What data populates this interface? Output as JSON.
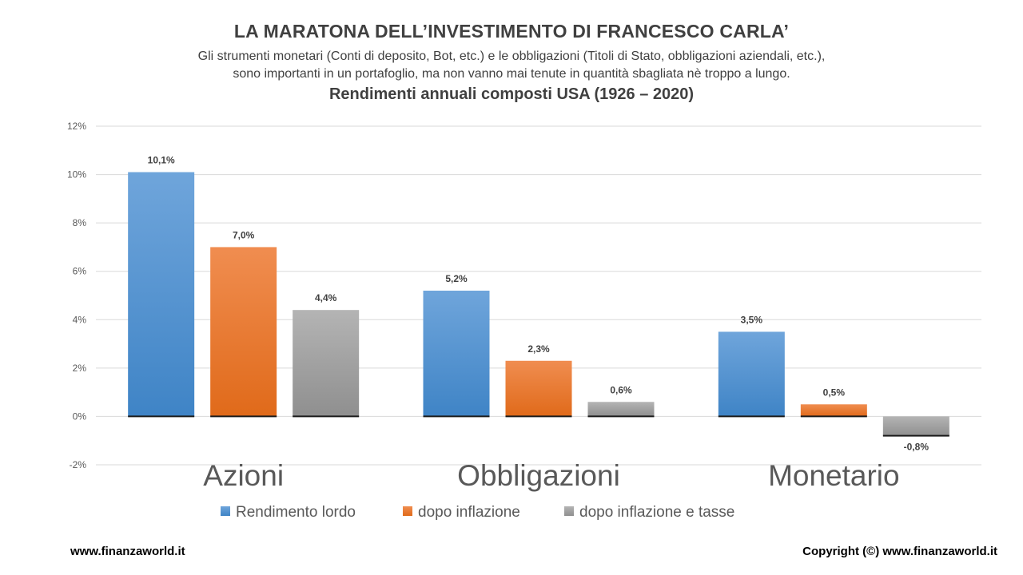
{
  "header": {
    "title": "LA MARATONA DELL’INVESTIMENTO DI FRANCESCO CARLA’",
    "subtitle_line1": "Gli strumenti monetari (Conti di deposito, Bot, etc.) e le obbligazioni (Titoli di Stato, obbligazioni aziendali, etc.),",
    "subtitle_line2": "sono importanti in un portafoglio, ma non vanno mai tenute in quantità sbagliata nè troppo a lungo.",
    "chart_title": "Rendimenti annuali composti USA (1926 – 2020)"
  },
  "footer": {
    "left": "www.finanzaworld.it",
    "right": "Copyright (©) www.finanzaworld.it"
  },
  "colors": {
    "series1": "#5b9bd5",
    "series2": "#ed7d31",
    "series3": "#a5a5a5",
    "grid": "#d9d9d9",
    "text": "#404040"
  },
  "chart_data": {
    "type": "bar",
    "categories": [
      "Azioni",
      "Obbligazioni",
      "Monetario"
    ],
    "series": [
      {
        "name": "Rendimento lordo",
        "values": [
          10.1,
          5.2,
          3.5
        ],
        "labels": [
          "10,1%",
          "5,2%",
          "3,5%"
        ]
      },
      {
        "name": "dopo inflazione",
        "values": [
          7.0,
          2.3,
          0.5
        ],
        "labels": [
          "7,0%",
          "2,3%",
          "0,5%"
        ]
      },
      {
        "name": "dopo inflazione e tasse",
        "values": [
          4.4,
          0.6,
          -0.8
        ],
        "labels": [
          "4,4%",
          "0,6%",
          "-0,8%"
        ]
      }
    ],
    "yticks": [
      "12%",
      "10%",
      "8%",
      "6%",
      "4%",
      "2%",
      "0%",
      "-2%"
    ],
    "ytick_values": [
      12,
      10,
      8,
      6,
      4,
      2,
      0,
      -2
    ],
    "ylim": [
      -2,
      12
    ],
    "grid": true,
    "legend_position": "bottom"
  }
}
